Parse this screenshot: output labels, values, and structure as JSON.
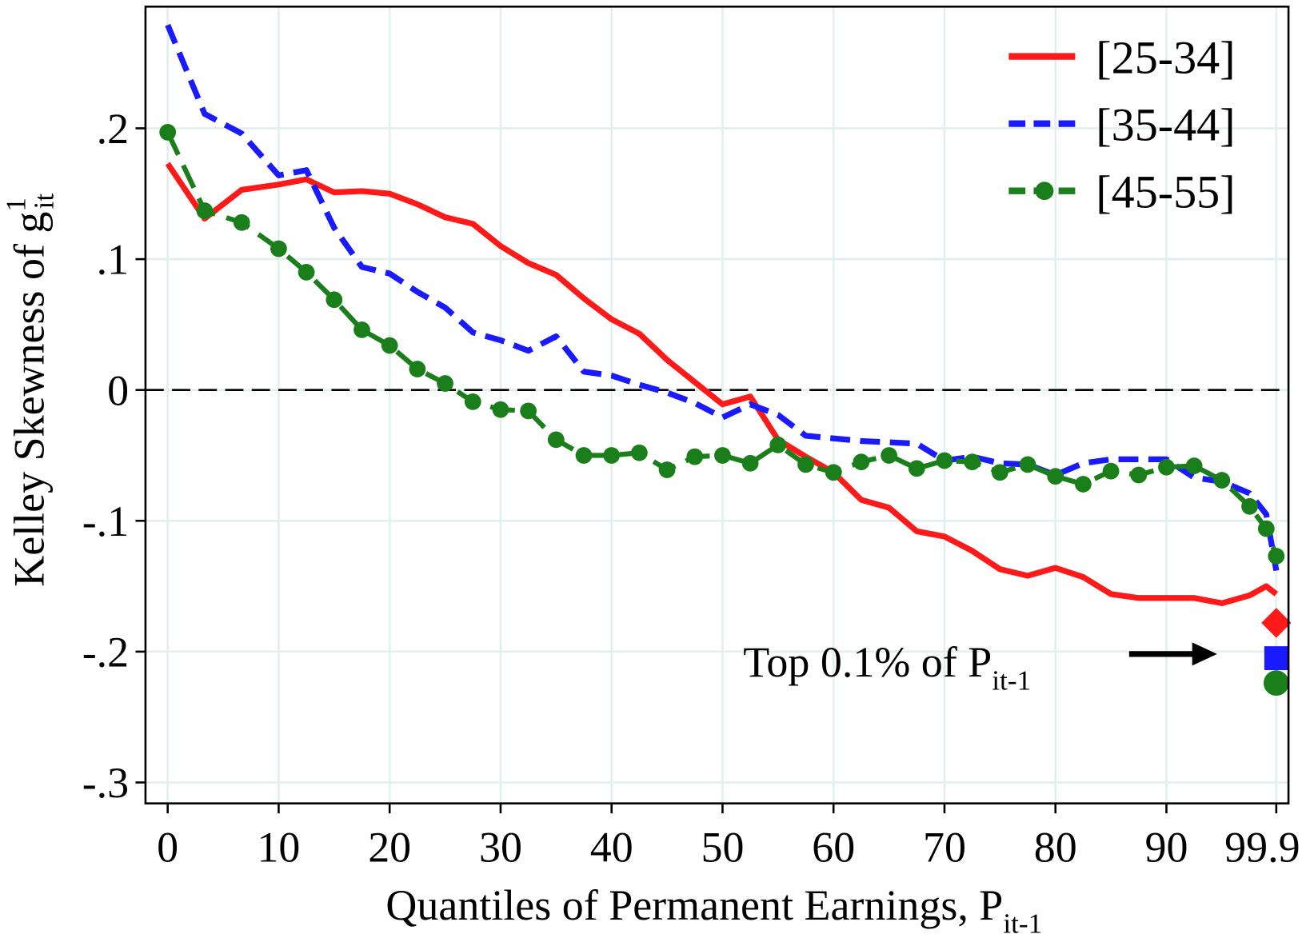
{
  "chart_data": {
    "type": "line",
    "ylabel": {
      "text": "Kelley Skewness of g",
      "sup": "1",
      "sub": "it"
    },
    "xlabel": {
      "text": "Quantiles of Permanent Earnings, P",
      "sub": "it-1"
    },
    "annotation": {
      "text": "Top 0.1% of P",
      "sub": "it-1"
    },
    "x": [
      0,
      3.33,
      6.67,
      10,
      12.5,
      15,
      17.5,
      20,
      22.5,
      25,
      27.5,
      30,
      32.5,
      35,
      37.5,
      40,
      42.5,
      45,
      47.5,
      50,
      52.5,
      55,
      57.5,
      60,
      62.5,
      65,
      67.5,
      70,
      72.5,
      75,
      77.5,
      80,
      82.5,
      85,
      87.5,
      90,
      92.5,
      95,
      97.5,
      99,
      99.9
    ],
    "top_x": 99.9,
    "series": [
      {
        "name": "[25-34]",
        "color": "#ff1a1a",
        "dash": "solid",
        "top_marker": "diamond",
        "values": [
          0.173,
          0.131,
          0.153,
          0.157,
          0.161,
          0.151,
          0.152,
          0.15,
          0.142,
          0.132,
          0.127,
          0.11,
          0.097,
          0.088,
          0.07,
          0.054,
          0.043,
          0.023,
          0.006,
          -0.011,
          -0.005,
          -0.038,
          -0.051,
          -0.063,
          -0.084,
          -0.09,
          -0.108,
          -0.112,
          -0.123,
          -0.137,
          -0.142,
          -0.136,
          -0.143,
          -0.156,
          -0.159,
          -0.159,
          -0.159,
          -0.163,
          -0.157,
          -0.15,
          -0.156
        ],
        "top": -0.178
      },
      {
        "name": "[35-44]",
        "color": "#1a1aff",
        "dash": "dash",
        "top_marker": "square",
        "values": [
          0.279,
          0.211,
          0.196,
          0.164,
          0.168,
          0.124,
          0.094,
          0.089,
          0.075,
          0.063,
          0.044,
          0.038,
          0.03,
          0.041,
          0.014,
          0.011,
          0.004,
          -0.002,
          -0.01,
          -0.021,
          -0.011,
          -0.019,
          -0.035,
          -0.037,
          -0.039,
          -0.04,
          -0.041,
          -0.054,
          -0.051,
          -0.056,
          -0.057,
          -0.065,
          -0.056,
          -0.053,
          -0.053,
          -0.053,
          -0.067,
          -0.07,
          -0.079,
          -0.095,
          -0.138
        ],
        "top": -0.205
      },
      {
        "name": "[45-55]",
        "color": "#1a7f1a",
        "dash": "longdash",
        "marker": "circle",
        "top_marker": "circle",
        "values": [
          0.197,
          0.137,
          0.128,
          0.108,
          0.09,
          0.069,
          0.046,
          0.034,
          0.016,
          0.005,
          -0.009,
          -0.015,
          -0.016,
          -0.038,
          -0.05,
          -0.05,
          -0.048,
          -0.061,
          -0.051,
          -0.05,
          -0.056,
          -0.042,
          -0.057,
          -0.063,
          -0.055,
          -0.05,
          -0.06,
          -0.054,
          -0.055,
          -0.063,
          -0.057,
          -0.066,
          -0.072,
          -0.062,
          -0.065,
          -0.059,
          -0.058,
          -0.069,
          -0.089,
          -0.106,
          -0.127
        ],
        "top": -0.224
      }
    ],
    "xlim": [
      -2,
      101
    ],
    "xticks": [
      0,
      10,
      20,
      30,
      40,
      50,
      60,
      70,
      80,
      90,
      99.9
    ],
    "ylim": [
      -0.316,
      0.293
    ],
    "yticks": [
      {
        "value": 0.2,
        "label": ".2"
      },
      {
        "value": 0.1,
        "label": ".1"
      },
      0,
      {
        "value": -0.1,
        "label": "-.1"
      },
      {
        "value": -0.2,
        "label": "-.2"
      },
      {
        "value": -0.3,
        "label": "-.3"
      }
    ],
    "reference_line": 0,
    "grid": true,
    "legend": "top-right"
  }
}
